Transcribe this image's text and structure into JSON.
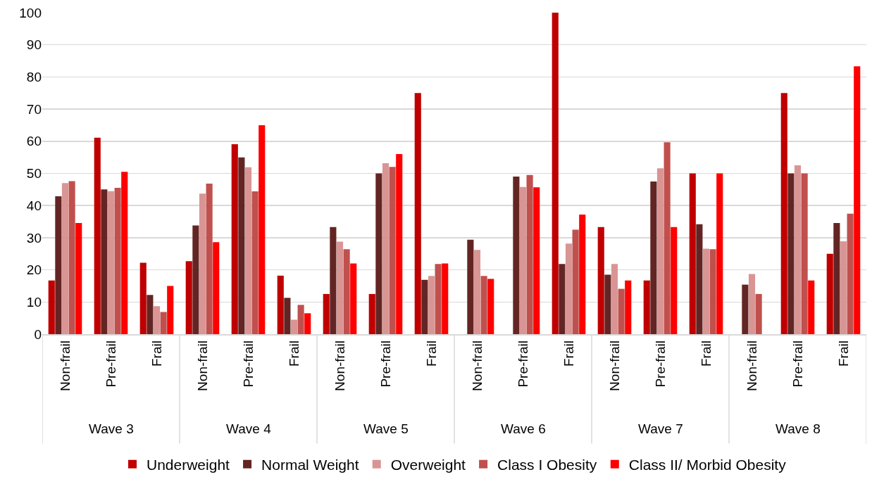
{
  "chart_data": {
    "type": "bar",
    "categories": [
      "Non-frail",
      "Pre-frail",
      "Frail",
      "Non-frail",
      "Pre-frail",
      "Frail",
      "Non-frail",
      "Pre-frail",
      "Frail",
      "Non-frail",
      "Pre-frail",
      "Frail",
      "Non-frail",
      "Pre-frail",
      "Frail",
      "Non-frail",
      "Pre-frail",
      "Frail"
    ],
    "annotations": [
      "Wave 3",
      "Wave 4",
      "Wave 5",
      "Wave 6",
      "Wave 7",
      "Wave 8"
    ],
    "series": [
      {
        "name": "Underweight",
        "color": "#c00000",
        "values": [
          16.7,
          61.1,
          22.2,
          22.7,
          59.1,
          18.2,
          12.5,
          12.5,
          75,
          null,
          null,
          100,
          33.3,
          16.7,
          50,
          null,
          75,
          25
        ]
      },
      {
        "name": "Normal Weight",
        "color": "#632523",
        "values": [
          42.9,
          45,
          12.2,
          33.8,
          55,
          11.3,
          33.3,
          50,
          16.9,
          29.4,
          49,
          21.8,
          18.5,
          47.5,
          34.2,
          15.4,
          50,
          34.6
        ]
      },
      {
        "name": "Overweight",
        "color": "#d99594",
        "values": [
          47,
          44.5,
          8.7,
          43.7,
          51.9,
          4.5,
          28.8,
          53.2,
          18.1,
          26.2,
          45.8,
          28.2,
          21.8,
          51.6,
          26.6,
          18.7,
          52.5,
          28.9
        ]
      },
      {
        "name": "Class I Obesity",
        "color": "#c0504d",
        "values": [
          47.6,
          45.5,
          6.9,
          46.8,
          44.4,
          9.1,
          26.4,
          52,
          21.8,
          18.1,
          49.5,
          32.5,
          14.1,
          59.7,
          26.4,
          12.5,
          50,
          37.5
        ]
      },
      {
        "name": "Class II/ Morbid Obesity",
        "color": "#ff0000",
        "values": [
          34.6,
          50.5,
          15,
          28.6,
          65,
          6.5,
          22,
          56,
          22,
          17.2,
          45.7,
          37.2,
          16.7,
          33.3,
          50,
          null,
          16.7,
          83.3
        ]
      }
    ],
    "ylim": [
      0,
      100
    ],
    "yticks": [
      0,
      10,
      20,
      30,
      40,
      50,
      60,
      70,
      80,
      90,
      100
    ],
    "grid": "y",
    "legend": "bottom"
  }
}
